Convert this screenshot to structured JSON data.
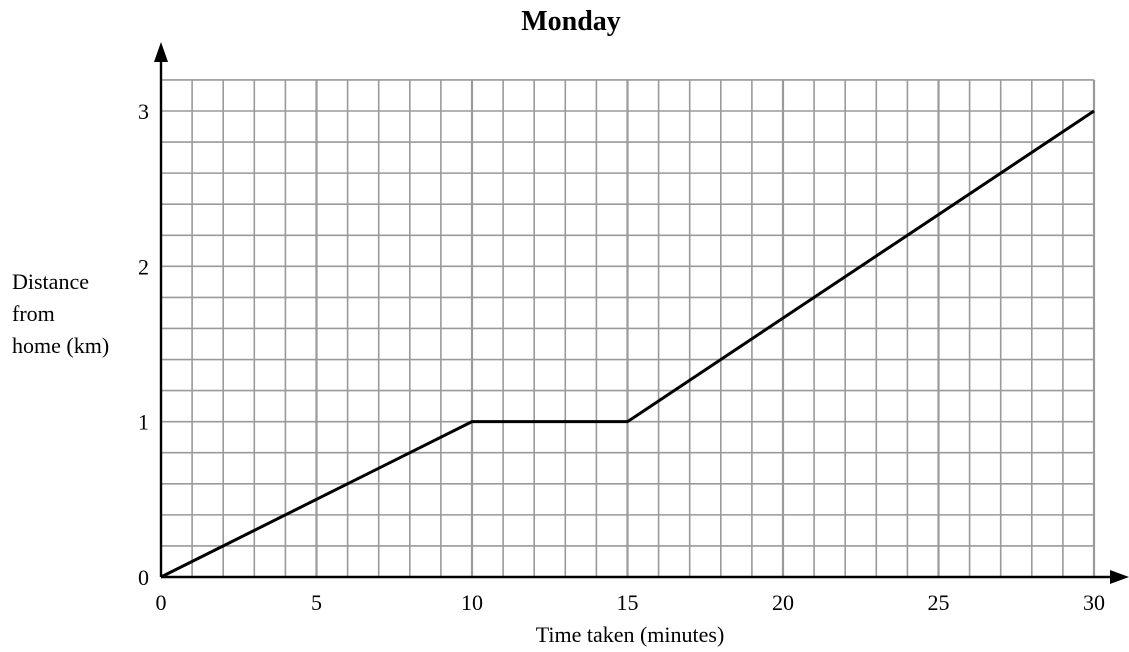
{
  "chart_data": {
    "type": "line",
    "title": "Monday",
    "xlabel": "Time taken (minutes)",
    "ylabel_lines": [
      "Distance",
      "from",
      "home (km)"
    ],
    "xlim": [
      0,
      30
    ],
    "ylim": [
      0,
      3
    ],
    "x_ticks": [
      0,
      5,
      10,
      15,
      20,
      25,
      30
    ],
    "y_ticks": [
      0,
      1,
      2,
      3
    ],
    "grid": true,
    "grid_minor_x_step": 1,
    "grid_minor_y_step": 0.2,
    "series": [
      {
        "points": [
          {
            "x": 0,
            "y": 0
          },
          {
            "x": 10,
            "y": 1
          },
          {
            "x": 15,
            "y": 1
          },
          {
            "x": 30,
            "y": 3
          }
        ]
      }
    ]
  }
}
